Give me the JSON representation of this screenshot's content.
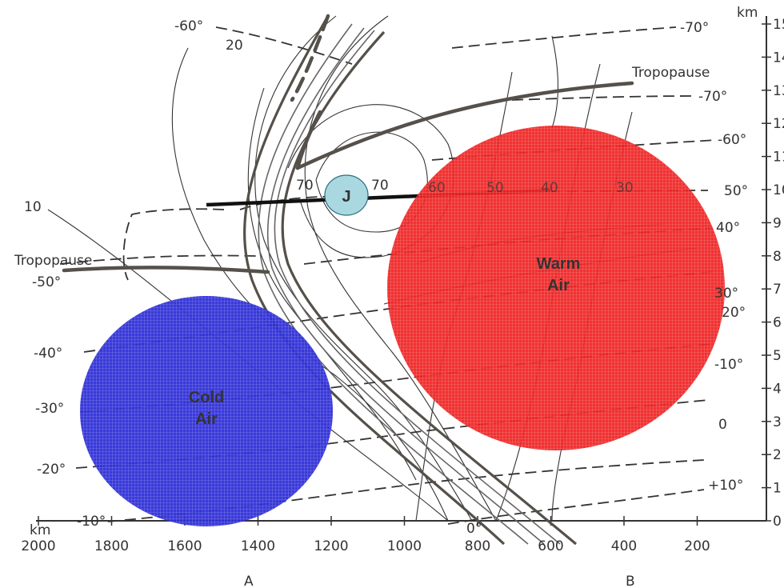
{
  "colors": {
    "cold": "#2f2fd6",
    "warm": "#ee2222",
    "jet": "#a9d8e0",
    "ink": "#333333"
  },
  "labels": {
    "km_left": "km",
    "km_right": "km",
    "cold": [
      "Cold",
      "Air"
    ],
    "warm": [
      "Warm",
      "Air"
    ],
    "jet": "J",
    "tropo_left": "Tropopause",
    "tropo_right": "Tropopause",
    "point_a": "A",
    "point_b": "B"
  },
  "x_ticks": [
    "2000",
    "1800",
    "1600",
    "1400",
    "1200",
    "1000",
    "800",
    "600",
    "400",
    "200"
  ],
  "y_ticks": [
    "0",
    "1",
    "2",
    "3",
    "4",
    "5",
    "6",
    "7",
    "8",
    "9",
    "10",
    "11",
    "12",
    "13",
    "14",
    "15"
  ],
  "isotherms_left": [
    "-50°",
    "-40°",
    "-30°",
    "-20°",
    "-10°"
  ],
  "isotherms_right": [
    "-70°",
    "-70°",
    "-60°",
    "50°",
    "40°",
    "30°",
    "20°",
    "-10°",
    "0",
    "+10°"
  ],
  "isotherm_top": "-60°",
  "isotherm_bottom": "0°",
  "isotachs": [
    "10",
    "20",
    "70",
    "70",
    "60",
    "50",
    "40",
    "30"
  ]
}
